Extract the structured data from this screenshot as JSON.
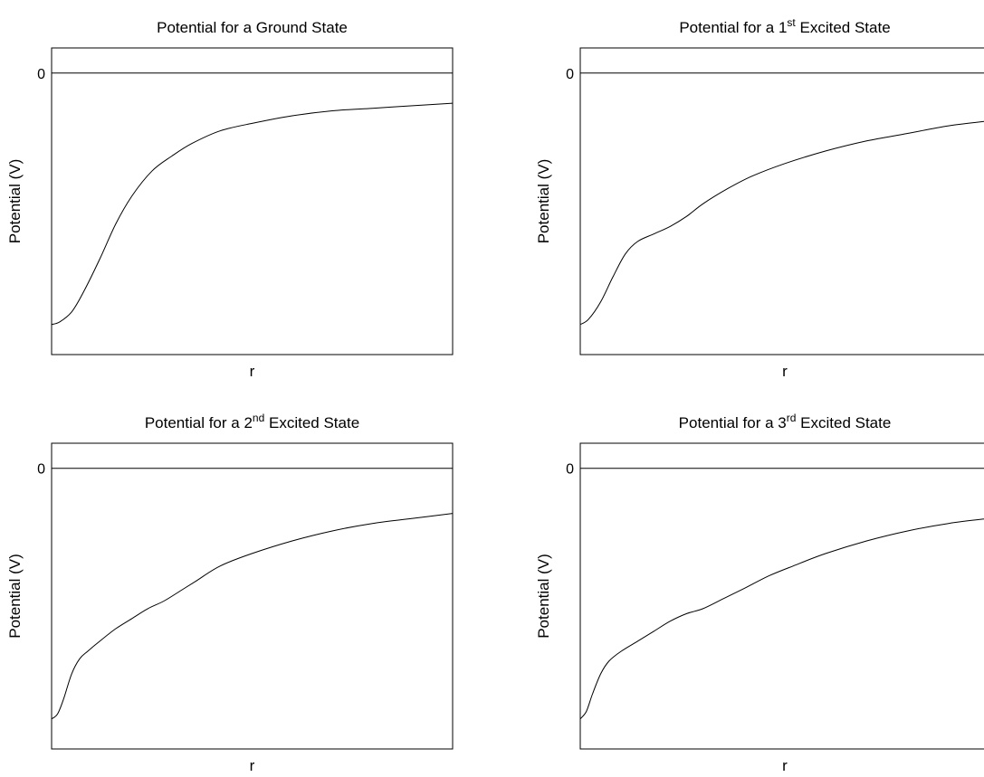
{
  "figure": {
    "axis_color": "#000000",
    "curve_color": "#000000",
    "background": "#ffffff"
  },
  "chart_data": [
    {
      "type": "line",
      "title": {
        "pre": "Potential for a Ground State",
        "sup": "",
        "post": ""
      },
      "xlabel": "r",
      "ylabel": "Potential (V)",
      "yticks": [
        "0"
      ],
      "ylim": [
        -1.12,
        0.1
      ],
      "xlim": [
        0,
        1
      ],
      "zero_line": true,
      "grid": false,
      "series": [
        {
          "x": [
            0,
            0.02,
            0.05,
            0.08,
            0.12,
            0.16,
            0.2,
            0.25,
            0.3,
            0.35,
            0.42,
            0.5,
            0.6,
            0.7,
            0.8,
            0.9,
            1.0
          ],
          "y": [
            -1.0,
            -0.99,
            -0.95,
            -0.87,
            -0.74,
            -0.6,
            -0.49,
            -0.39,
            -0.33,
            -0.28,
            -0.23,
            -0.2,
            -0.17,
            -0.15,
            -0.14,
            -0.13,
            -0.12
          ]
        }
      ]
    },
    {
      "type": "line",
      "title": {
        "pre": "Potential for a 1",
        "sup": "st",
        "post": " Excited State"
      },
      "xlabel": "r",
      "ylabel": "Potential (V)",
      "yticks": [
        "0"
      ],
      "ylim": [
        -1.12,
        0.1
      ],
      "xlim": [
        0,
        1
      ],
      "zero_line": true,
      "grid": false,
      "series": [
        {
          "x": [
            0,
            0.02,
            0.05,
            0.08,
            0.11,
            0.14,
            0.18,
            0.22,
            0.26,
            0.3,
            0.36,
            0.42,
            0.5,
            0.6,
            0.7,
            0.8,
            0.9,
            1.0
          ],
          "y": [
            -1.0,
            -0.98,
            -0.91,
            -0.81,
            -0.72,
            -0.67,
            -0.64,
            -0.61,
            -0.57,
            -0.52,
            -0.46,
            -0.41,
            -0.36,
            -0.31,
            -0.27,
            -0.24,
            -0.21,
            -0.19
          ]
        }
      ]
    },
    {
      "type": "line",
      "title": {
        "pre": "Potential for a 2",
        "sup": "nd",
        "post": " Excited State"
      },
      "xlabel": "r",
      "ylabel": "Potential (V)",
      "yticks": [
        "0"
      ],
      "ylim": [
        -1.12,
        0.1
      ],
      "xlim": [
        0,
        1
      ],
      "zero_line": true,
      "grid": false,
      "series": [
        {
          "x": [
            0,
            0.015,
            0.03,
            0.05,
            0.07,
            0.09,
            0.12,
            0.16,
            0.2,
            0.24,
            0.28,
            0.32,
            0.36,
            0.42,
            0.5,
            0.6,
            0.7,
            0.8,
            0.9,
            1.0
          ],
          "y": [
            -1.0,
            -0.98,
            -0.92,
            -0.82,
            -0.76,
            -0.73,
            -0.69,
            -0.64,
            -0.6,
            -0.56,
            -0.53,
            -0.49,
            -0.45,
            -0.39,
            -0.34,
            -0.29,
            -0.25,
            -0.22,
            -0.2,
            -0.18
          ]
        }
      ]
    },
    {
      "type": "line",
      "title": {
        "pre": "Potential for a 3",
        "sup": "rd",
        "post": " Excited State"
      },
      "xlabel": "r",
      "ylabel": "Potential (V)",
      "yticks": [
        "0"
      ],
      "ylim": [
        -1.12,
        0.1
      ],
      "xlim": [
        0,
        1
      ],
      "zero_line": true,
      "grid": false,
      "series": [
        {
          "x": [
            0,
            0.015,
            0.03,
            0.05,
            0.07,
            0.1,
            0.14,
            0.18,
            0.22,
            0.26,
            0.3,
            0.35,
            0.4,
            0.46,
            0.52,
            0.6,
            0.7,
            0.8,
            0.9,
            1.0
          ],
          "y": [
            -1.0,
            -0.97,
            -0.9,
            -0.82,
            -0.77,
            -0.73,
            -0.69,
            -0.65,
            -0.61,
            -0.58,
            -0.56,
            -0.52,
            -0.48,
            -0.43,
            -0.39,
            -0.34,
            -0.29,
            -0.25,
            -0.22,
            -0.2
          ]
        }
      ]
    }
  ]
}
